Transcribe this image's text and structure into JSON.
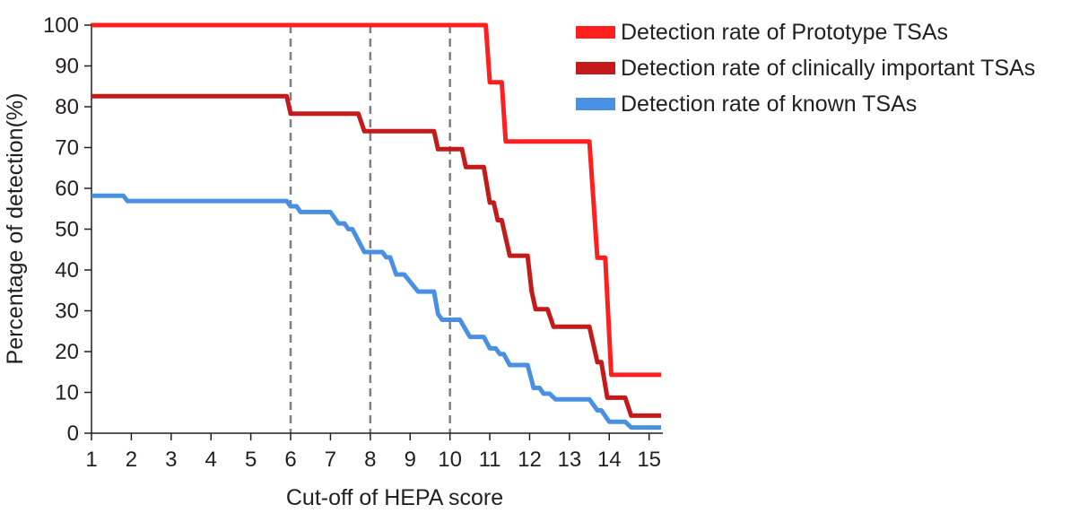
{
  "chart_data": {
    "type": "line",
    "title": "",
    "xlabel": "Cut-off of HEPA score",
    "ylabel": "Percentage of detection(%)",
    "xlim": [
      1,
      15.3
    ],
    "ylim": [
      0,
      100
    ],
    "xticks": [
      1,
      2,
      3,
      4,
      5,
      6,
      7,
      8,
      9,
      10,
      11,
      12,
      13,
      14,
      15
    ],
    "yticks": [
      0,
      10,
      20,
      30,
      40,
      50,
      60,
      70,
      80,
      90,
      100
    ],
    "xtick_labels": [
      "1",
      "2",
      "3",
      "4",
      "5",
      "6",
      "7",
      "8",
      "9",
      "10",
      "11",
      "12",
      "13",
      "14",
      "15"
    ],
    "ytick_labels": [
      "0",
      "10",
      "20",
      "30",
      "40",
      "50",
      "60",
      "70",
      "80",
      "90",
      "100"
    ],
    "grid": false,
    "reference_lines_x": [
      6,
      8,
      10
    ],
    "legend_position": "top-right",
    "series": [
      {
        "name": "Detection rate of Prototype TSAs",
        "color": "#ff1f1f",
        "points": [
          [
            1,
            100
          ],
          [
            10.9,
            100
          ],
          [
            11.0,
            86
          ],
          [
            11.3,
            86
          ],
          [
            11.4,
            71.5
          ],
          [
            13.5,
            71.5
          ],
          [
            13.7,
            43
          ],
          [
            13.9,
            43
          ],
          [
            14.05,
            14.3
          ],
          [
            15.3,
            14.3
          ]
        ]
      },
      {
        "name": "Detection rate of clinically important TSAs",
        "color": "#c41a1a",
        "points": [
          [
            1,
            82.6
          ],
          [
            5.9,
            82.6
          ],
          [
            6.0,
            78.3
          ],
          [
            7.7,
            78.3
          ],
          [
            7.85,
            74
          ],
          [
            9.6,
            74
          ],
          [
            9.7,
            69.6
          ],
          [
            10.3,
            69.6
          ],
          [
            10.4,
            65.2
          ],
          [
            10.85,
            65.2
          ],
          [
            11.0,
            56.5
          ],
          [
            11.1,
            56.5
          ],
          [
            11.2,
            52.2
          ],
          [
            11.3,
            52.2
          ],
          [
            11.5,
            43.5
          ],
          [
            11.95,
            43.5
          ],
          [
            12.05,
            34.8
          ],
          [
            12.15,
            30.4
          ],
          [
            12.45,
            30.4
          ],
          [
            12.6,
            26.1
          ],
          [
            13.5,
            26.1
          ],
          [
            13.7,
            17.4
          ],
          [
            13.8,
            17.4
          ],
          [
            13.95,
            8.7
          ],
          [
            14.4,
            8.7
          ],
          [
            14.55,
            4.3
          ],
          [
            15.3,
            4.3
          ]
        ]
      },
      {
        "name": "Detection rate of known TSAs",
        "color": "#4a90e2",
        "points": [
          [
            1,
            58.2
          ],
          [
            1.8,
            58.2
          ],
          [
            1.9,
            56.9
          ],
          [
            5.9,
            56.9
          ],
          [
            6.0,
            55.6
          ],
          [
            6.15,
            55.6
          ],
          [
            6.25,
            54.2
          ],
          [
            7.0,
            54.2
          ],
          [
            7.2,
            51.4
          ],
          [
            7.35,
            51.4
          ],
          [
            7.45,
            50
          ],
          [
            7.55,
            50
          ],
          [
            7.7,
            47.2
          ],
          [
            7.85,
            44.4
          ],
          [
            8.3,
            44.4
          ],
          [
            8.4,
            43.1
          ],
          [
            8.5,
            43.1
          ],
          [
            8.65,
            38.9
          ],
          [
            8.85,
            38.9
          ],
          [
            9.2,
            34.7
          ],
          [
            9.6,
            34.7
          ],
          [
            9.7,
            29.2
          ],
          [
            9.8,
            27.8
          ],
          [
            10.25,
            27.8
          ],
          [
            10.5,
            23.6
          ],
          [
            10.85,
            23.6
          ],
          [
            11.0,
            20.8
          ],
          [
            11.15,
            20.8
          ],
          [
            11.25,
            19.4
          ],
          [
            11.35,
            19.4
          ],
          [
            11.5,
            16.7
          ],
          [
            11.95,
            16.7
          ],
          [
            12.1,
            11.1
          ],
          [
            12.25,
            11.1
          ],
          [
            12.35,
            9.7
          ],
          [
            12.5,
            9.7
          ],
          [
            12.65,
            8.3
          ],
          [
            13.5,
            8.3
          ],
          [
            13.7,
            5.6
          ],
          [
            13.8,
            5.6
          ],
          [
            14.0,
            2.8
          ],
          [
            14.4,
            2.8
          ],
          [
            14.55,
            1.4
          ],
          [
            15.3,
            1.4
          ]
        ]
      }
    ]
  }
}
